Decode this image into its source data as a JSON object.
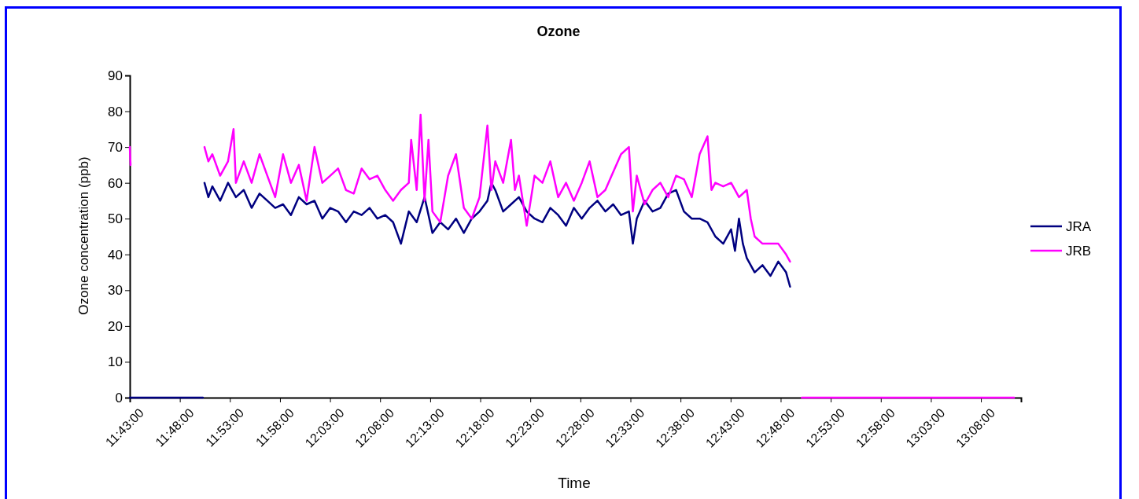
{
  "chart_data": {
    "type": "line",
    "title": "Ozone",
    "xlabel": "Time",
    "ylabel": "Ozone concentration (ppb)",
    "xlim": [
      11.7167,
      13.2
    ],
    "ylim": [
      0,
      90
    ],
    "yticks": [
      0,
      10,
      20,
      30,
      40,
      50,
      60,
      70,
      80,
      90
    ],
    "xticks": [
      {
        "value": 11.7167,
        "label": "11:43:00"
      },
      {
        "value": 11.8,
        "label": "11:48:00"
      },
      {
        "value": 11.8833,
        "label": "11:53:00"
      },
      {
        "value": 11.9667,
        "label": "11:58:00"
      },
      {
        "value": 12.05,
        "label": "12:03:00"
      },
      {
        "value": 12.1333,
        "label": "12:08:00"
      },
      {
        "value": 12.2167,
        "label": "12:13:00"
      },
      {
        "value": 12.3,
        "label": "12:18:00"
      },
      {
        "value": 12.3833,
        "label": "12:23:00"
      },
      {
        "value": 12.4667,
        "label": "12:28:00"
      },
      {
        "value": 12.55,
        "label": "12:33:00"
      },
      {
        "value": 12.6333,
        "label": "12:38:00"
      },
      {
        "value": 12.7167,
        "label": "12:43:00"
      },
      {
        "value": 12.8,
        "label": "12:48:00"
      },
      {
        "value": 12.8833,
        "label": "12:53:00"
      },
      {
        "value": 12.9667,
        "label": "12:58:00"
      },
      {
        "value": 13.05,
        "label": "13:03:00"
      },
      {
        "value": 13.1333,
        "label": "13:08:00"
      }
    ],
    "grid": false,
    "legend": "right",
    "line_style": "solid",
    "marker": "none",
    "series": [
      {
        "name": "JRA",
        "color": "#000080",
        "x": [
          11.7167,
          11.8384,
          11.839,
          11.841,
          11.8475,
          11.8541,
          11.8671,
          11.8802,
          11.8933,
          11.9064,
          11.9195,
          11.9326,
          11.9456,
          11.9587,
          11.9718,
          11.9849,
          11.998,
          12.011,
          12.0241,
          12.0372,
          12.0503,
          12.0634,
          12.0765,
          12.0895,
          12.1026,
          12.1157,
          12.1288,
          12.1419,
          12.1549,
          12.168,
          12.1811,
          12.1942,
          12.2073,
          12.2204,
          12.2334,
          12.2465,
          12.2596,
          12.2727,
          12.2858,
          12.2988,
          12.3119,
          12.3185,
          12.325,
          12.3381,
          12.3512,
          12.3643,
          12.3773,
          12.3904,
          12.4035,
          12.4166,
          12.4297,
          12.4428,
          12.4558,
          12.4689,
          12.482,
          12.4951,
          12.5082,
          12.5212,
          12.5343,
          12.5474,
          12.554,
          12.5605,
          12.5736,
          12.5867,
          12.5997,
          12.6128,
          12.6259,
          12.639,
          12.6521,
          12.6651,
          12.6782,
          12.6913,
          12.7044,
          12.7175,
          12.724,
          12.7306,
          12.7371,
          12.7436,
          12.7567,
          12.7698,
          12.7829,
          12.796,
          12.809,
          12.8156
        ],
        "values": [
          0,
          0,
          null,
          60,
          56,
          59,
          55,
          60,
          56,
          58,
          53,
          57,
          55,
          53,
          54,
          51,
          56,
          54,
          55,
          50,
          53,
          52,
          49,
          52,
          51,
          53,
          50,
          51,
          49,
          43,
          52,
          49,
          56,
          46,
          49,
          47,
          50,
          46,
          50,
          52,
          55,
          60,
          58,
          52,
          54,
          56,
          52,
          50,
          49,
          53,
          51,
          48,
          53,
          50,
          53,
          55,
          52,
          54,
          51,
          52,
          43,
          50,
          55,
          52,
          53,
          57,
          58,
          52,
          50,
          50,
          49,
          45,
          43,
          47,
          41,
          50,
          43,
          39,
          35,
          37,
          34,
          38,
          35,
          31
        ]
      },
      {
        "name": "JRB",
        "color": "#ff00ff",
        "x": [
          11.7167,
          11.718,
          11.72,
          11.841,
          11.8475,
          11.8541,
          11.8671,
          11.8802,
          11.8894,
          11.8933,
          11.9064,
          11.9195,
          11.9326,
          11.9456,
          11.9587,
          11.9718,
          11.9849,
          11.998,
          12.011,
          12.0241,
          12.0372,
          12.0503,
          12.0634,
          12.0765,
          12.0895,
          12.1026,
          12.1157,
          12.1288,
          12.1419,
          12.1549,
          12.168,
          12.1811,
          12.185,
          12.1942,
          12.2007,
          12.2073,
          12.2138,
          12.2204,
          12.2334,
          12.2465,
          12.2596,
          12.2727,
          12.2858,
          12.2988,
          12.3119,
          12.3185,
          12.325,
          12.3381,
          12.3512,
          12.3577,
          12.3643,
          12.3773,
          12.3904,
          12.4035,
          12.4166,
          12.4297,
          12.4428,
          12.4558,
          12.4689,
          12.482,
          12.4951,
          12.5082,
          12.5212,
          12.5343,
          12.5474,
          12.554,
          12.5605,
          12.5736,
          12.5867,
          12.5997,
          12.6128,
          12.6259,
          12.639,
          12.6521,
          12.6651,
          12.6782,
          12.6848,
          12.6913,
          12.7044,
          12.7175,
          12.7306,
          12.7436,
          12.7502,
          12.7567,
          12.7698,
          12.7829,
          12.796,
          12.809,
          12.8156,
          12.82,
          12.8352,
          13.1884
        ],
        "values": [
          70,
          65,
          null,
          70,
          66,
          68,
          62,
          66,
          75,
          60,
          66,
          60,
          68,
          62,
          56,
          68,
          60,
          65,
          55,
          70,
          60,
          62,
          64,
          58,
          57,
          64,
          61,
          62,
          58,
          55,
          58,
          60,
          72,
          58,
          79,
          55,
          72,
          52,
          49,
          62,
          68,
          53,
          50,
          56,
          76,
          58,
          66,
          60,
          72,
          58,
          62,
          48,
          62,
          60,
          66,
          56,
          60,
          55,
          60,
          66,
          56,
          58,
          63,
          68,
          70,
          52,
          62,
          54,
          58,
          60,
          56,
          62,
          61,
          56,
          68,
          73,
          58,
          60,
          59,
          60,
          56,
          58,
          50,
          45,
          43,
          43,
          43,
          40,
          38,
          null,
          0,
          0
        ]
      }
    ]
  }
}
